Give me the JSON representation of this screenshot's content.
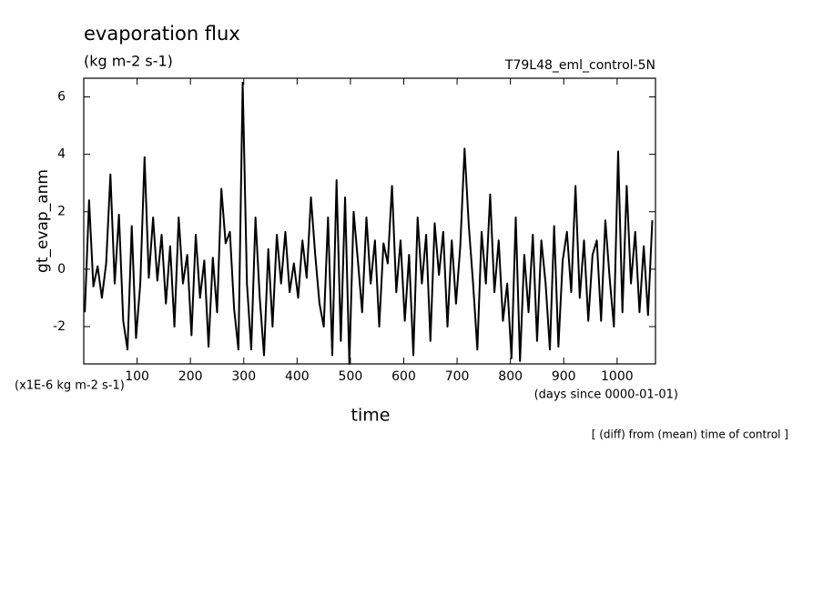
{
  "chart_data": {
    "type": "line",
    "title": "evaporation flux",
    "subtitle": "(kg m-2 s-1)",
    "run_label": "T79L48_eml_control-5N",
    "y_label": "gt_evap_anm",
    "y_units": "(x1E-6 kg m-2 s-1)",
    "x_label": "time",
    "x_units": "(days since 0000-01-01)",
    "note": "[ (diff) from (mean) time of control ]",
    "color": "#000000",
    "xlim": [
      0,
      1072
    ],
    "ylim": [
      -3.3,
      6.65
    ],
    "xticks": [
      100,
      200,
      300,
      400,
      500,
      600,
      700,
      800,
      900,
      1000
    ],
    "yticks": [
      -2,
      0,
      2,
      4,
      6
    ],
    "x": [
      2,
      10,
      18,
      26,
      34,
      42,
      50,
      58,
      66,
      74,
      82,
      90,
      98,
      106,
      114,
      122,
      130,
      138,
      146,
      154,
      162,
      170,
      178,
      186,
      194,
      202,
      210,
      218,
      226,
      234,
      242,
      250,
      258,
      266,
      274,
      282,
      290,
      298,
      306,
      314,
      322,
      330,
      338,
      346,
      354,
      362,
      370,
      378,
      386,
      394,
      402,
      410,
      418,
      426,
      434,
      442,
      450,
      458,
      466,
      474,
      482,
      490,
      498,
      506,
      514,
      522,
      530,
      538,
      546,
      554,
      562,
      570,
      578,
      586,
      594,
      602,
      610,
      618,
      626,
      634,
      642,
      650,
      658,
      666,
      674,
      682,
      690,
      698,
      706,
      714,
      722,
      730,
      738,
      746,
      754,
      762,
      770,
      778,
      786,
      794,
      802,
      810,
      818,
      826,
      834,
      842,
      850,
      858,
      866,
      874,
      882,
      890,
      898,
      906,
      914,
      922,
      930,
      938,
      946,
      954,
      962,
      970,
      978,
      986,
      994,
      1002,
      1010,
      1018,
      1026,
      1034,
      1042,
      1050,
      1058,
      1066
    ],
    "values": [
      -1.5,
      2.4,
      -0.6,
      0.1,
      -1.0,
      0.2,
      3.3,
      -0.5,
      1.9,
      -1.8,
      -2.8,
      1.5,
      -2.4,
      -0.5,
      3.9,
      -0.3,
      1.8,
      -0.4,
      1.2,
      -1.2,
      0.8,
      -2.0,
      1.8,
      -0.5,
      0.5,
      -2.3,
      1.2,
      -1.0,
      0.3,
      -2.7,
      0.4,
      -1.5,
      2.8,
      0.9,
      1.3,
      -1.4,
      -2.8,
      6.5,
      -0.5,
      -2.8,
      1.8,
      -1.0,
      -3.0,
      0.7,
      -2.0,
      1.2,
      -0.5,
      1.3,
      -0.8,
      0.2,
      -1.0,
      1.0,
      -0.3,
      2.5,
      0.5,
      -1.2,
      -2.0,
      1.8,
      -3.0,
      3.1,
      -2.5,
      2.5,
      -3.3,
      2.0,
      0.3,
      -1.5,
      1.8,
      -0.5,
      1.0,
      -2.0,
      0.9,
      0.2,
      2.9,
      -0.8,
      1.0,
      -1.8,
      0.5,
      -3.0,
      1.8,
      -0.5,
      1.2,
      -2.5,
      1.6,
      -0.2,
      1.3,
      -2.0,
      1.0,
      -1.2,
      0.8,
      4.2,
      1.5,
      -0.5,
      -2.8,
      1.3,
      -0.5,
      2.6,
      -0.8,
      1.0,
      -1.8,
      -0.5,
      -3.1,
      1.8,
      -3.2,
      0.5,
      -1.5,
      1.2,
      -2.5,
      1.0,
      -0.5,
      -2.8,
      1.5,
      -2.7,
      0.3,
      1.3,
      -0.8,
      2.9,
      -1.0,
      1.0,
      -1.8,
      0.5,
      1.0,
      -1.8,
      1.7,
      -0.3,
      -2.0,
      4.1,
      -1.5,
      2.9,
      -0.5,
      1.3,
      -1.5,
      0.8,
      -1.6,
      1.7
    ]
  }
}
